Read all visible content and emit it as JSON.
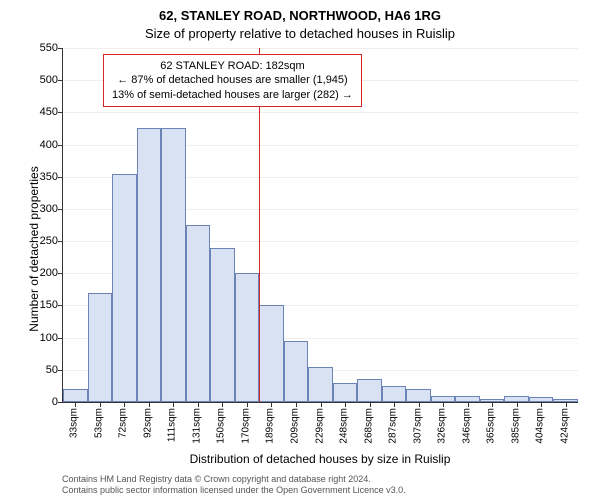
{
  "chart": {
    "type": "histogram",
    "title_main": "62, STANLEY ROAD, NORTHWOOD, HA6 1RG",
    "title_sub": "Size of property relative to detached houses in Ruislip",
    "y_axis": {
      "label": "Number of detached properties",
      "lim": [
        0,
        550
      ],
      "tick_step": 50,
      "ticks": [
        0,
        50,
        100,
        150,
        200,
        250,
        300,
        350,
        400,
        450,
        500,
        550
      ],
      "label_fontsize": 12,
      "tick_fontsize": 11
    },
    "x_axis": {
      "label": "Distribution of detached houses by size in Ruislip",
      "labels": [
        "33sqm",
        "53sqm",
        "72sqm",
        "92sqm",
        "111sqm",
        "131sqm",
        "150sqm",
        "170sqm",
        "189sqm",
        "209sqm",
        "229sqm",
        "248sqm",
        "268sqm",
        "287sqm",
        "307sqm",
        "326sqm",
        "346sqm",
        "365sqm",
        "385sqm",
        "404sqm",
        "424sqm"
      ],
      "label_fontsize": 12,
      "tick_fontsize": 10
    },
    "bars": {
      "values": [
        20,
        170,
        355,
        425,
        425,
        275,
        240,
        200,
        150,
        95,
        55,
        30,
        35,
        25,
        20,
        10,
        10,
        5,
        10,
        8,
        5
      ],
      "fill_color": "#d8e2f2",
      "border_color": "#6a84b8",
      "bar_width": 1.0
    },
    "reference_line": {
      "bin_index": 8,
      "color": "#d62728"
    },
    "callout": {
      "line1": "62 STANLEY ROAD: 182sqm",
      "line2": "← 87% of detached houses are smaller (1,945)",
      "line3": "13% of semi-detached houses are larger (282) →",
      "border_color": "#d62728",
      "background_color": "#ffffff",
      "fontsize": 11
    },
    "background_color": "#ffffff",
    "grid_color": "#eeeeee",
    "attribution": {
      "line1": "Contains HM Land Registry data © Crown copyright and database right 2024.",
      "line2": "Contains public sector information licensed under the Open Government Licence v3.0."
    }
  }
}
